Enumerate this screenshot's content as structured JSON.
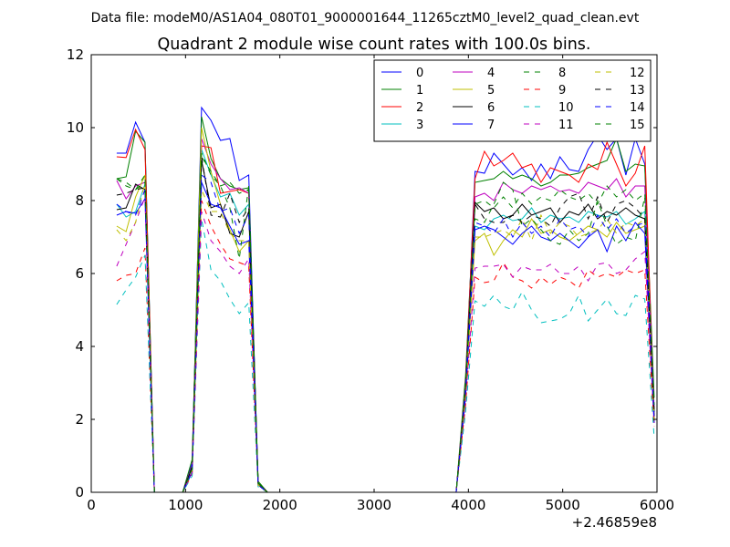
{
  "header": {
    "data_file": "Data file: modeM0/AS1A04_080T01_9000001644_11265cztM0_level2_quad_clean.evt"
  },
  "chart_data": {
    "type": "line",
    "title": "Quadrant 2 module wise count rates with 100.0s bins.",
    "xlabel": "",
    "ylabel": "",
    "x_offset_label": "+2.46859e8",
    "xlim": [
      0,
      6000
    ],
    "ylim": [
      0,
      12
    ],
    "xticks": [
      0,
      1000,
      2000,
      3000,
      4000,
      5000,
      6000
    ],
    "yticks": [
      0,
      2,
      4,
      6,
      8,
      10,
      12
    ],
    "grid": false,
    "legend_position": "top-right",
    "x": [
      270,
      370,
      470,
      570,
      670,
      770,
      870,
      970,
      1070,
      1170,
      1270,
      1370,
      1470,
      1570,
      1670,
      1770,
      1870,
      1970,
      2070,
      2170,
      2270,
      2370,
      2470,
      2570,
      2670,
      2770,
      2870,
      2970,
      3070,
      3170,
      3270,
      3370,
      3470,
      3570,
      3670,
      3770,
      3870,
      3970,
      4070,
      4170,
      4270,
      4370,
      4470,
      4570,
      4670,
      4770,
      4870,
      4970,
      5070,
      5170,
      5270,
      5370,
      5470,
      5570,
      5670,
      5770,
      5870,
      5970
    ],
    "series": [
      {
        "name": "0",
        "color": "#0000ff",
        "dash": "solid",
        "values": [
          9.3,
          9.3,
          10.15,
          9.6,
          0,
          0,
          0,
          0,
          0.8,
          10.55,
          10.2,
          9.65,
          9.7,
          8.55,
          8.7,
          0.2,
          0,
          0,
          0,
          0,
          0,
          0,
          0,
          0,
          0,
          0,
          0,
          0,
          0,
          0,
          0,
          0,
          0,
          0,
          0,
          0,
          0,
          2.9,
          8.8,
          8.75,
          9.3,
          9.0,
          8.7,
          8.9,
          8.55,
          9.0,
          8.6,
          9.2,
          8.85,
          8.8,
          9.4,
          9.8,
          9.4,
          9.7,
          8.7,
          9.7,
          9.0,
          2.2
        ]
      },
      {
        "name": "1",
        "color": "#008000",
        "dash": "solid",
        "values": [
          8.6,
          8.65,
          9.9,
          9.6,
          0,
          0,
          0,
          0,
          0.9,
          10.3,
          9.15,
          8.6,
          8.4,
          8.3,
          8.35,
          0.3,
          0,
          0,
          0,
          0,
          0,
          0,
          0,
          0,
          0,
          0,
          0,
          0,
          0,
          0,
          0,
          0,
          0,
          0,
          0,
          0,
          0,
          3.2,
          8.5,
          8.55,
          8.6,
          8.8,
          8.6,
          8.7,
          8.6,
          8.4,
          8.5,
          8.7,
          8.7,
          8.75,
          8.9,
          9.0,
          9.1,
          9.7,
          8.8,
          9.0,
          8.95,
          2.6
        ]
      },
      {
        "name": "2",
        "color": "#ff0000",
        "dash": "solid",
        "values": [
          9.2,
          9.18,
          9.95,
          9.4,
          0,
          0,
          0,
          0,
          0.7,
          9.5,
          9.45,
          8.2,
          8.25,
          8.3,
          8.2,
          0.25,
          0,
          0,
          0,
          0,
          0,
          0,
          0,
          0,
          0,
          0,
          0,
          0,
          0,
          0,
          0,
          0,
          0,
          0,
          0,
          0,
          0,
          3.0,
          8.6,
          9.35,
          8.95,
          9.1,
          9.3,
          8.9,
          9.0,
          8.5,
          8.9,
          8.8,
          8.7,
          8.5,
          9.0,
          8.85,
          9.6,
          9.0,
          8.4,
          8.75,
          9.5,
          2.0
        ]
      },
      {
        "name": "3",
        "color": "#00bfbf",
        "dash": "solid",
        "values": [
          7.9,
          7.55,
          7.7,
          8.45,
          0,
          0,
          0,
          0,
          0.6,
          9.4,
          8.7,
          8.1,
          8.2,
          7.6,
          7.9,
          0.2,
          0,
          0,
          0,
          0,
          0,
          0,
          0,
          0,
          0,
          0,
          0,
          0,
          0,
          0,
          0,
          0,
          0,
          0,
          0,
          0,
          0,
          2.8,
          7.3,
          7.2,
          7.5,
          7.6,
          7.45,
          7.5,
          7.8,
          7.4,
          7.6,
          7.5,
          7.55,
          7.4,
          7.7,
          7.6,
          7.55,
          7.7,
          7.35,
          7.5,
          7.7,
          1.9
        ]
      },
      {
        "name": "4",
        "color": "#bf00bf",
        "dash": "solid",
        "values": [
          8.55,
          8.05,
          8.4,
          8.5,
          0,
          0,
          0,
          0,
          0.75,
          9.7,
          9.0,
          8.6,
          8.3,
          8.35,
          8.2,
          0.25,
          0,
          0,
          0,
          0,
          0,
          0,
          0,
          0,
          0,
          0,
          0,
          0,
          0,
          0,
          0,
          0,
          0,
          0,
          0,
          0,
          0,
          3.0,
          8.1,
          8.2,
          8.0,
          8.5,
          8.3,
          8.2,
          8.4,
          8.3,
          8.4,
          8.25,
          8.3,
          8.2,
          8.5,
          8.4,
          8.3,
          8.6,
          8.1,
          8.4,
          8.4,
          2.3
        ]
      },
      {
        "name": "5",
        "color": "#bfbf00",
        "dash": "solid",
        "values": [
          7.3,
          7.15,
          8.1,
          8.7,
          0,
          0,
          0,
          0,
          0.65,
          10.0,
          8.8,
          7.9,
          7.2,
          6.6,
          6.9,
          0.2,
          0,
          0,
          0,
          0,
          0,
          0,
          0,
          0,
          0,
          0,
          0,
          0,
          0,
          0,
          0,
          0,
          0,
          0,
          0,
          0,
          0,
          2.7,
          6.9,
          7.1,
          6.5,
          6.9,
          7.2,
          7.0,
          7.5,
          7.1,
          7.2,
          7.0,
          6.9,
          7.1,
          7.3,
          7.2,
          7.0,
          7.4,
          7.1,
          7.2,
          7.3,
          2.0
        ]
      },
      {
        "name": "6",
        "color": "#000000",
        "dash": "solid",
        "values": [
          7.75,
          7.8,
          8.45,
          8.3,
          0,
          0,
          0,
          0,
          0.7,
          9.1,
          7.8,
          7.9,
          7.1,
          7.0,
          7.7,
          0.25,
          0,
          0,
          0,
          0,
          0,
          0,
          0,
          0,
          0,
          0,
          0,
          0,
          0,
          0,
          0,
          0,
          0,
          0,
          0,
          0,
          0,
          2.9,
          7.95,
          7.7,
          7.8,
          7.5,
          7.6,
          7.9,
          7.6,
          7.7,
          7.8,
          7.4,
          7.7,
          7.6,
          7.9,
          7.5,
          7.7,
          7.6,
          7.8,
          7.6,
          7.5,
          2.1
        ]
      },
      {
        "name": "7",
        "color": "#0000ff",
        "dash": "solid",
        "values": [
          7.6,
          7.7,
          7.65,
          8.05,
          0,
          0,
          0,
          0,
          0.55,
          8.5,
          7.9,
          7.8,
          7.3,
          6.8,
          6.9,
          0.2,
          0,
          0,
          0,
          0,
          0,
          0,
          0,
          0,
          0,
          0,
          0,
          0,
          0,
          0,
          0,
          0,
          0,
          0,
          0,
          0,
          0,
          2.6,
          7.2,
          7.3,
          7.2,
          7.0,
          6.8,
          7.1,
          7.3,
          7.0,
          6.9,
          7.1,
          6.9,
          6.7,
          7.0,
          7.2,
          6.6,
          7.3,
          6.9,
          7.4,
          7.1,
          1.9
        ]
      },
      {
        "name": "8",
        "color": "#008000",
        "dash": "dashed",
        "values": [
          8.6,
          8.5,
          8.3,
          8.7,
          0,
          0,
          0,
          0,
          0.7,
          9.3,
          8.7,
          8.4,
          7.8,
          6.4,
          8.4,
          0.25,
          0,
          0,
          0,
          0,
          0,
          0,
          0,
          0,
          0,
          0,
          0,
          0,
          0,
          0,
          0,
          0,
          0,
          0,
          0,
          0,
          0,
          2.9,
          7.5,
          7.4,
          7.9,
          8.5,
          8.3,
          7.3,
          7.5,
          7.2,
          6.9,
          6.8,
          7.2,
          6.9,
          7.1,
          8.0,
          7.3,
          6.8,
          7.0,
          6.9,
          8.1,
          2.2
        ]
      },
      {
        "name": "9",
        "color": "#ff0000",
        "dash": "dashed",
        "values": [
          5.8,
          5.95,
          6.0,
          6.7,
          0,
          0,
          0,
          0,
          0.5,
          8.0,
          7.3,
          6.8,
          6.4,
          6.3,
          6.2,
          0.2,
          0,
          0,
          0,
          0,
          0,
          0,
          0,
          0,
          0,
          0,
          0,
          0,
          0,
          0,
          0,
          0,
          0,
          0,
          0,
          0,
          0,
          2.4,
          5.9,
          5.75,
          5.8,
          6.3,
          5.9,
          5.8,
          5.6,
          5.9,
          5.7,
          5.9,
          5.8,
          5.6,
          6.1,
          5.9,
          6.0,
          5.9,
          6.1,
          6.0,
          6.1,
          1.8
        ]
      },
      {
        "name": "10",
        "color": "#00bfbf",
        "dash": "dashed",
        "values": [
          5.15,
          5.55,
          5.9,
          6.5,
          0,
          0,
          0,
          0,
          0.45,
          7.5,
          6.1,
          5.8,
          5.3,
          4.9,
          5.2,
          0.15,
          0,
          0,
          0,
          0,
          0,
          0,
          0,
          0,
          0,
          0,
          0,
          0,
          0,
          0,
          0,
          0,
          0,
          0,
          0,
          0,
          0,
          2.2,
          5.25,
          5.1,
          5.4,
          5.1,
          5.0,
          5.5,
          5.0,
          4.65,
          4.7,
          4.75,
          4.9,
          5.4,
          4.7,
          5.0,
          5.3,
          4.9,
          4.85,
          5.4,
          5.3,
          1.5
        ]
      },
      {
        "name": "11",
        "color": "#bf00bf",
        "dash": "dashed",
        "values": [
          6.2,
          6.8,
          7.4,
          8.1,
          0,
          0,
          0,
          0,
          0.55,
          7.7,
          6.9,
          6.6,
          6.2,
          6.0,
          6.4,
          0.2,
          0,
          0,
          0,
          0,
          0,
          0,
          0,
          0,
          0,
          0,
          0,
          0,
          0,
          0,
          0,
          0,
          0,
          0,
          0,
          0,
          0,
          2.5,
          6.15,
          6.2,
          6.2,
          6.25,
          5.9,
          6.2,
          6.1,
          6.1,
          6.25,
          6.0,
          6.0,
          6.2,
          5.8,
          6.25,
          6.3,
          6.0,
          6.1,
          6.4,
          6.6,
          1.9
        ]
      },
      {
        "name": "12",
        "color": "#bfbf00",
        "dash": "dashed",
        "values": [
          7.2,
          6.9,
          7.4,
          8.5,
          0,
          0,
          0,
          0,
          0.6,
          8.3,
          7.7,
          7.7,
          7.1,
          6.9,
          6.9,
          0.2,
          0,
          0,
          0,
          0,
          0,
          0,
          0,
          0,
          0,
          0,
          0,
          0,
          0,
          0,
          0,
          0,
          0,
          0,
          0,
          0,
          0,
          2.7,
          7.0,
          7.0,
          7.1,
          7.2,
          7.0,
          7.5,
          6.9,
          7.6,
          7.1,
          7.4,
          7.3,
          7.0,
          7.1,
          7.2,
          7.5,
          7.1,
          7.4,
          7.3,
          7.5,
          2.0
        ]
      },
      {
        "name": "13",
        "color": "#000000",
        "dash": "dashed",
        "values": [
          8.15,
          8.2,
          8.3,
          8.35,
          0,
          0,
          0,
          0,
          0.7,
          9.2,
          7.6,
          7.55,
          8.2,
          7.4,
          7.8,
          0.25,
          0,
          0,
          0,
          0,
          0,
          0,
          0,
          0,
          0,
          0,
          0,
          0,
          0,
          0,
          0,
          0,
          0,
          0,
          0,
          0,
          0,
          2.9,
          7.9,
          7.5,
          7.4,
          7.4,
          7.6,
          7.4,
          7.6,
          7.5,
          7.3,
          7.8,
          8.1,
          8.2,
          7.5,
          8.1,
          7.4,
          7.9,
          8.0,
          7.8,
          7.5,
          2.2
        ]
      },
      {
        "name": "14",
        "color": "#0000ff",
        "dash": "dashed",
        "values": [
          7.9,
          7.7,
          7.6,
          8.3,
          0,
          0,
          0,
          0,
          0.6,
          8.7,
          8.5,
          7.7,
          7.8,
          7.1,
          7.6,
          0.2,
          0,
          0,
          0,
          0,
          0,
          0,
          0,
          0,
          0,
          0,
          0,
          0,
          0,
          0,
          0,
          0,
          0,
          0,
          0,
          0,
          0,
          2.8,
          7.4,
          7.3,
          7.1,
          7.5,
          7.0,
          7.4,
          7.1,
          7.3,
          7.0,
          7.5,
          7.2,
          7.3,
          7.0,
          7.6,
          7.2,
          7.5,
          7.1,
          7.3,
          7.4,
          2.0
        ]
      },
      {
        "name": "15",
        "color": "#008000",
        "dash": "dashed",
        "values": [
          8.6,
          8.4,
          8.3,
          8.5,
          0,
          0,
          0,
          0,
          0.65,
          9.2,
          8.8,
          8.4,
          8.5,
          8.2,
          8.3,
          0.25,
          0,
          0,
          0,
          0,
          0,
          0,
          0,
          0,
          0,
          0,
          0,
          0,
          0,
          0,
          0,
          0,
          0,
          0,
          0,
          0,
          0,
          2.9,
          7.9,
          8.0,
          7.8,
          8.1,
          7.8,
          8.2,
          7.9,
          8.1,
          8.0,
          8.3,
          8.1,
          8.0,
          8.2,
          7.9,
          8.4,
          8.1,
          8.3,
          8.0,
          8.2,
          2.4
        ]
      }
    ]
  }
}
